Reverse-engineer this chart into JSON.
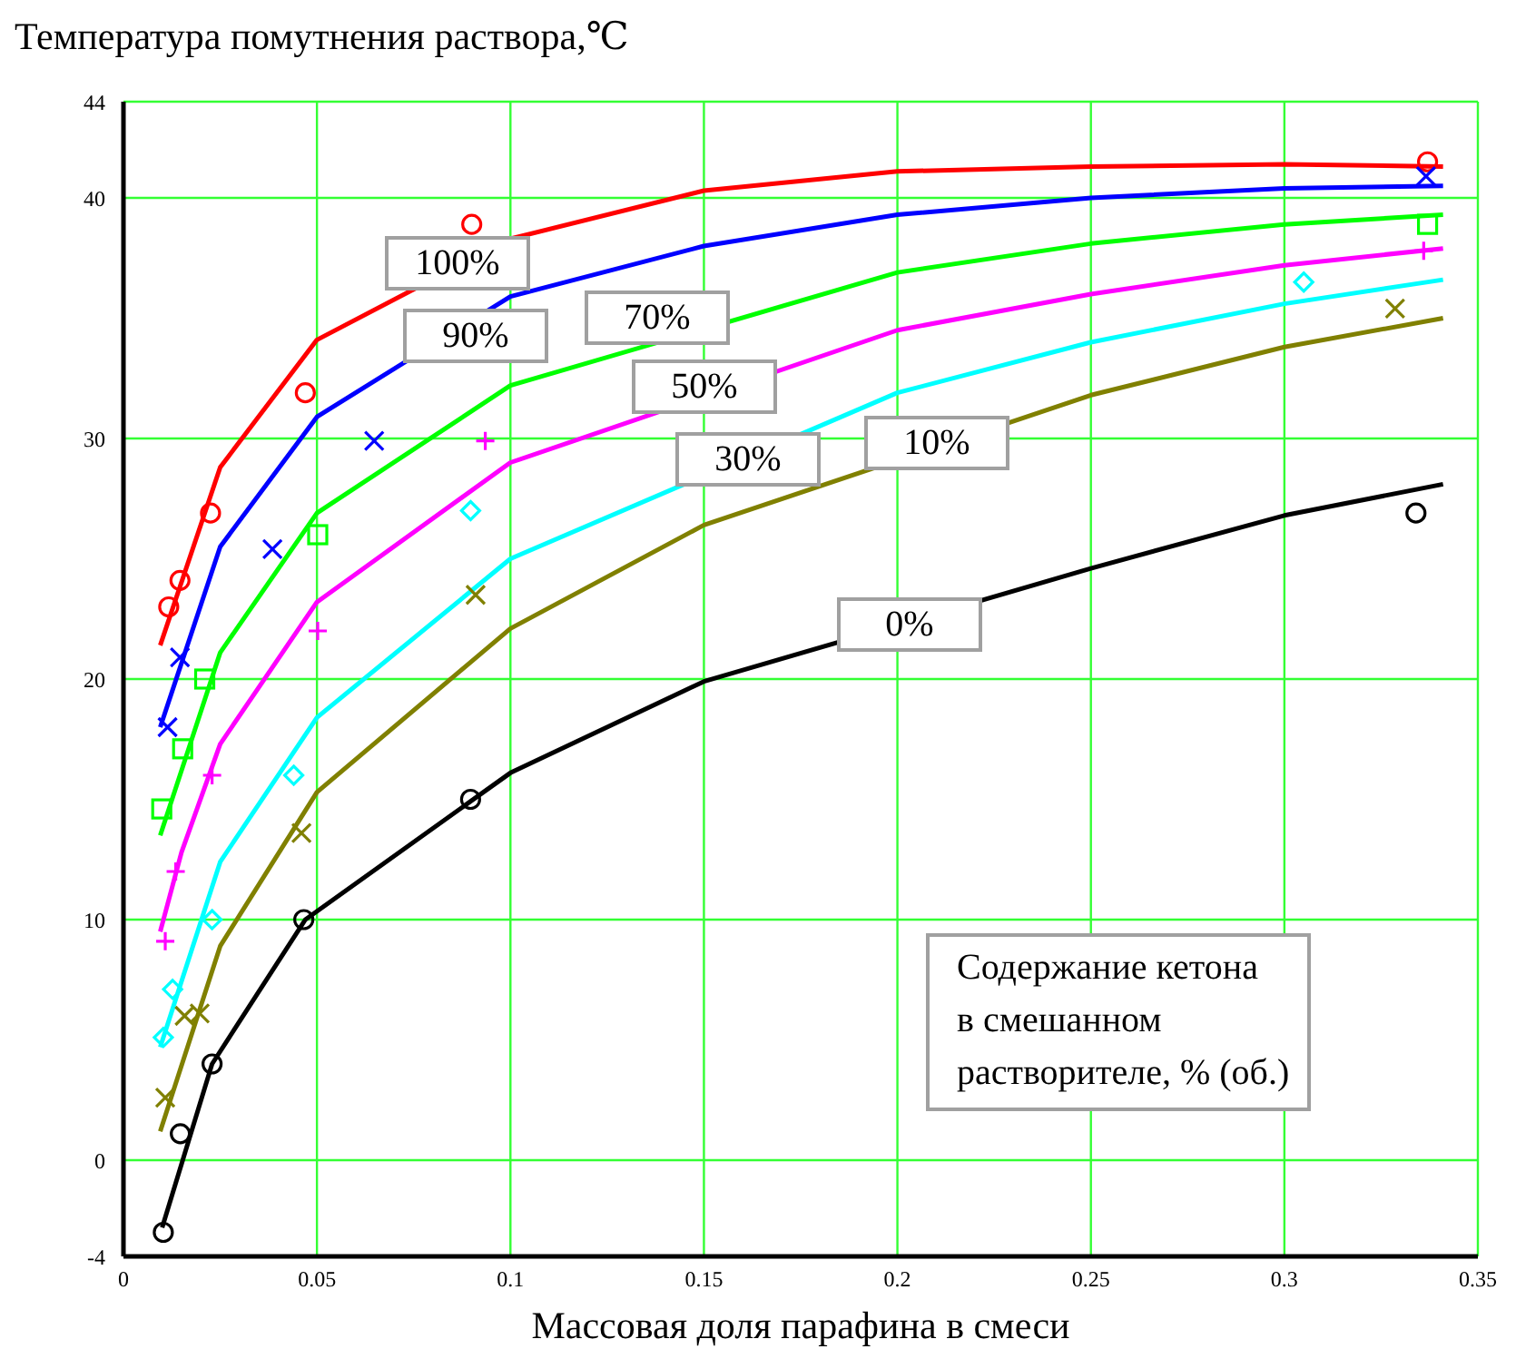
{
  "chart_data": {
    "type": "line",
    "xlabel": "Массовая доля парафина в смеси",
    "ylabel": "Температура помутнения раствора,℃",
    "xlim": [
      0,
      0.35
    ],
    "xticks": [
      0,
      0.05,
      0.1,
      0.15,
      0.2,
      0.25,
      0.3,
      0.35
    ],
    "ylim": [
      -4,
      44
    ],
    "yticks": [
      -4,
      0,
      10,
      20,
      30,
      40,
      44
    ],
    "grid": true,
    "marker": "none",
    "line_style": "solid",
    "annotations": [
      "Содержание кетона\nв смешанном\nрастворителе, % (об.)"
    ],
    "series": [
      {
        "name": "100%",
        "color": "#ff0000",
        "x": [
          0.0095,
          0.025,
          0.05,
          0.1,
          0.15,
          0.2,
          0.25,
          0.3,
          0.341
        ],
        "values": [
          21.4,
          28.8,
          34.1,
          38.3,
          40.3,
          41.1,
          41.3,
          41.4,
          41.3
        ]
      },
      {
        "name": "90%",
        "color": "#0000ff",
        "x": [
          0.0095,
          0.025,
          0.05,
          0.1,
          0.15,
          0.2,
          0.25,
          0.3,
          0.341
        ],
        "values": [
          18.0,
          25.5,
          30.9,
          35.9,
          38.0,
          39.3,
          40.0,
          40.4,
          40.5
        ]
      },
      {
        "name": "70%",
        "color": "#00ff00",
        "x": [
          0.0095,
          0.025,
          0.05,
          0.1,
          0.2,
          0.25,
          0.3,
          0.341
        ],
        "values": [
          13.5,
          21.1,
          26.9,
          32.2,
          36.9,
          38.1,
          38.9,
          39.3
        ]
      },
      {
        "name": "50%",
        "color": "#ff00ff",
        "x": [
          0.0095,
          0.015,
          0.025,
          0.05,
          0.1,
          0.2,
          0.25,
          0.3,
          0.341
        ],
        "values": [
          9.5,
          12.8,
          17.3,
          23.2,
          29.0,
          34.5,
          36.0,
          37.2,
          37.9
        ]
      },
      {
        "name": "30%",
        "color": "#00ffff",
        "x": [
          0.0095,
          0.025,
          0.05,
          0.1,
          0.2,
          0.25,
          0.3,
          0.341
        ],
        "values": [
          4.7,
          12.4,
          18.4,
          25.0,
          31.9,
          34.0,
          35.6,
          36.6
        ]
      },
      {
        "name": "10%",
        "color": "#808000",
        "x": [
          0.0095,
          0.025,
          0.05,
          0.1,
          0.15,
          0.25,
          0.3,
          0.341
        ],
        "values": [
          1.2,
          8.9,
          15.3,
          22.1,
          26.4,
          31.8,
          33.8,
          35.0
        ]
      },
      {
        "name": "0%",
        "color": "#000000",
        "x": [
          0.01,
          0.0229,
          0.047,
          0.1,
          0.15,
          0.25,
          0.3,
          0.341
        ],
        "values": [
          -2.8,
          4.0,
          10.0,
          16.1,
          19.9,
          24.6,
          26.8,
          28.1
        ]
      },
      {
        "type": "scatter",
        "marker": "circle",
        "color": "#ff0000",
        "x": [
          0.0117,
          0.0146,
          0.0225,
          0.047,
          0.09,
          0.337
        ],
        "values": [
          23.0,
          24.1,
          26.9,
          31.9,
          38.9,
          41.5
        ]
      },
      {
        "type": "scatter",
        "marker": "cross",
        "color": "#0000ff",
        "x": [
          0.0114,
          0.0146,
          0.0385,
          0.0648,
          0.3366
        ],
        "values": [
          18.0,
          20.9,
          25.4,
          29.9,
          40.9
        ]
      },
      {
        "type": "scatter",
        "marker": "square",
        "color": "#00ff00",
        "x": [
          0.0099,
          0.0153,
          0.021,
          0.0502,
          0.337
        ],
        "values": [
          14.6,
          17.1,
          20.0,
          26.0,
          38.9
        ]
      },
      {
        "type": "scatter",
        "marker": "plus",
        "color": "#ff00ff",
        "x": [
          0.0108,
          0.0135,
          0.0229,
          0.0502,
          0.0935,
          0.336
        ],
        "values": [
          9.1,
          12.0,
          16.0,
          22.0,
          29.9,
          37.8
        ]
      },
      {
        "type": "scatter",
        "marker": "diamond",
        "color": "#00ffff",
        "x": [
          0.0103,
          0.0127,
          0.0229,
          0.044,
          0.0897,
          0.305
        ],
        "values": [
          5.1,
          7.1,
          10.0,
          16.0,
          27.0,
          36.5
        ]
      },
      {
        "type": "scatter",
        "marker": "cross",
        "color": "#808000",
        "x": [
          0.0108,
          0.0158,
          0.0197,
          0.046,
          0.091,
          0.3286
        ],
        "values": [
          2.6,
          6.0,
          6.1,
          13.6,
          23.5,
          35.4
        ]
      },
      {
        "type": "scatter",
        "marker": "circle",
        "color": "#000000",
        "x": [
          0.0103,
          0.0147,
          0.0229,
          0.0466,
          0.0897,
          0.334
        ],
        "values": [
          -3.0,
          1.1,
          4.0,
          10.0,
          15.0,
          26.9
        ]
      }
    ]
  }
}
